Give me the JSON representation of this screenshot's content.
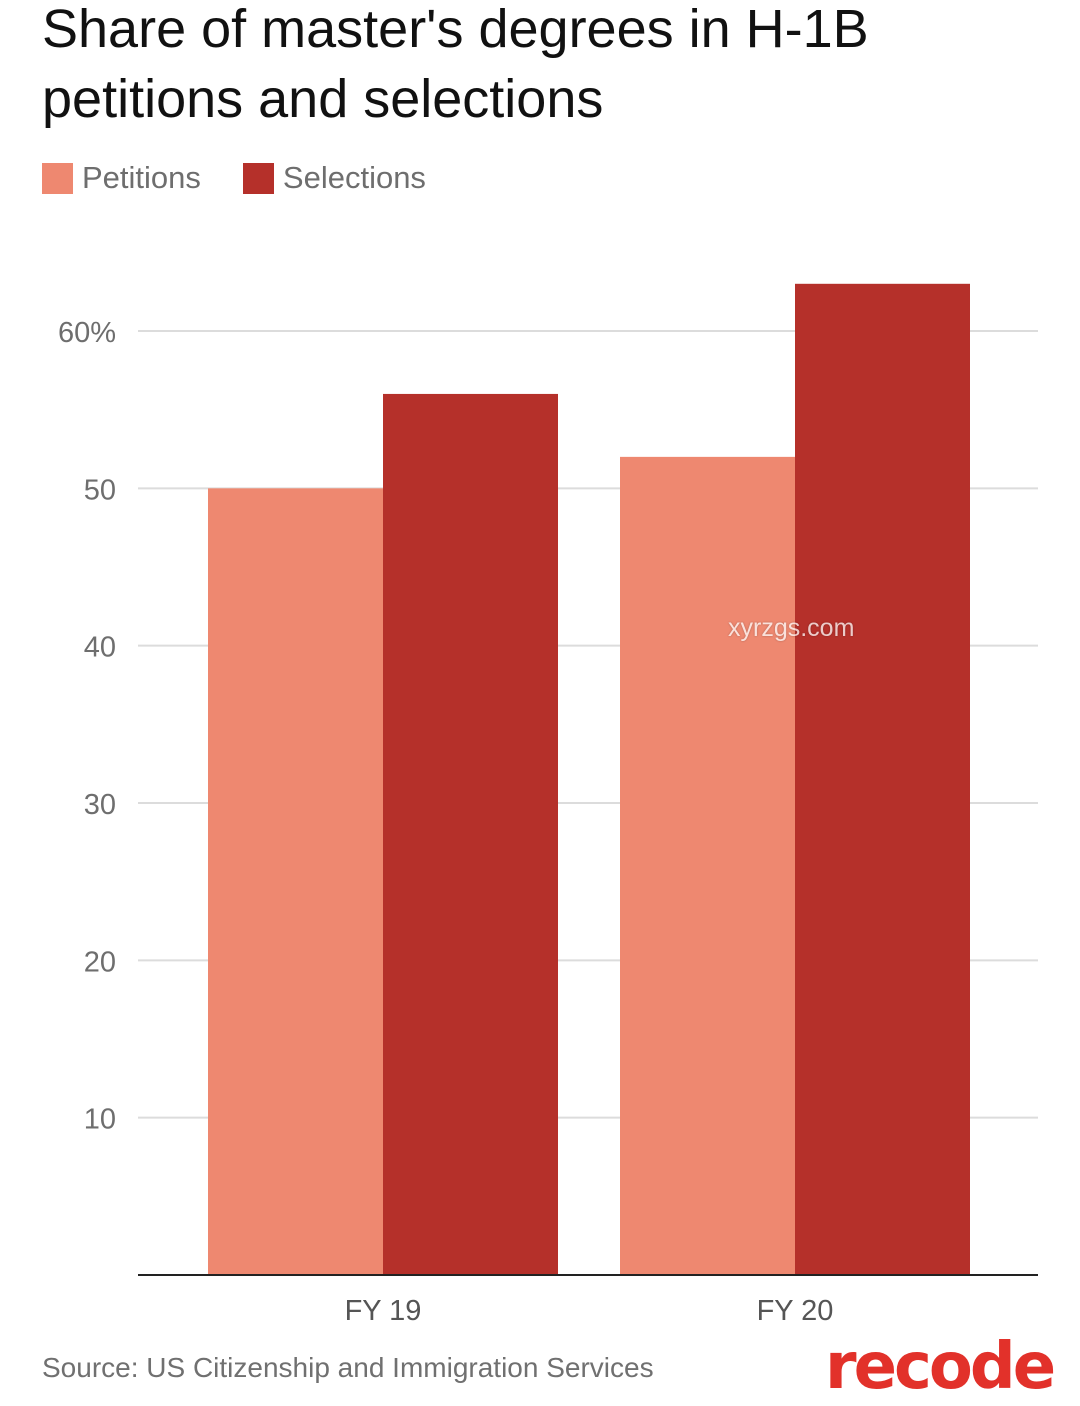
{
  "title": "Share of master's degrees in H-1B petitions and selections",
  "legend": [
    {
      "label": "Petitions",
      "color": "#ee8870"
    },
    {
      "label": "Selections",
      "color": "#b5302a"
    }
  ],
  "source": "Source: US Citizenship and Immigration Services",
  "logo": "recode",
  "watermark": "xyrzgs.com",
  "chart_data": {
    "type": "bar",
    "categories": [
      "FY 19",
      "FY 20"
    ],
    "series": [
      {
        "name": "Petitions",
        "values": [
          50,
          52
        ],
        "color": "#ee8870"
      },
      {
        "name": "Selections",
        "values": [
          56,
          63
        ],
        "color": "#b5302a"
      }
    ],
    "yticks": [
      {
        "value": 10,
        "label": "10"
      },
      {
        "value": 20,
        "label": "20"
      },
      {
        "value": 30,
        "label": "30"
      },
      {
        "value": 40,
        "label": "40"
      },
      {
        "value": 50,
        "label": "50"
      },
      {
        "value": 60,
        "label": "60%"
      }
    ],
    "ylim": [
      0,
      63
    ],
    "grid": true,
    "legend_position": "top-left"
  }
}
